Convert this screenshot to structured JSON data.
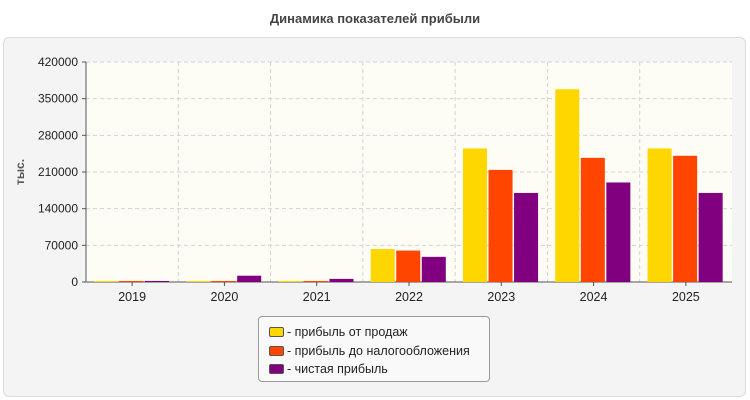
{
  "title": "Динамика показателей прибыли",
  "chart_data": {
    "type": "bar",
    "title": "Динамика показателей прибыли",
    "xlabel": "",
    "ylabel": "тыс.",
    "ylim": [
      0,
      420000
    ],
    "yticks": [
      0,
      70000,
      140000,
      210000,
      280000,
      350000,
      420000
    ],
    "categories": [
      "2019",
      "2020",
      "2021",
      "2022",
      "2023",
      "2024",
      "2025"
    ],
    "series": [
      {
        "name": "прибыль от продаж",
        "color": "#FFD700",
        "values": [
          2000,
          2000,
          2000,
          63000,
          255000,
          368000,
          255000
        ]
      },
      {
        "name": "прибыль до налогообложения",
        "color": "#FF4500",
        "values": [
          2000,
          2000,
          2000,
          60000,
          214000,
          237000,
          241000
        ]
      },
      {
        "name": "чистая прибыль",
        "color": "#800080",
        "values": [
          2000,
          12000,
          6000,
          48000,
          170000,
          190000,
          170000
        ]
      }
    ],
    "grid": true,
    "legend_position": "bottom-center"
  },
  "legend": {
    "items": [
      {
        "label": "- прибыль от продаж",
        "color": "#FFD700"
      },
      {
        "label": "- прибыль до налогообложения",
        "color": "#FF4500"
      },
      {
        "label": "- чистая прибыль",
        "color": "#800080"
      }
    ]
  }
}
